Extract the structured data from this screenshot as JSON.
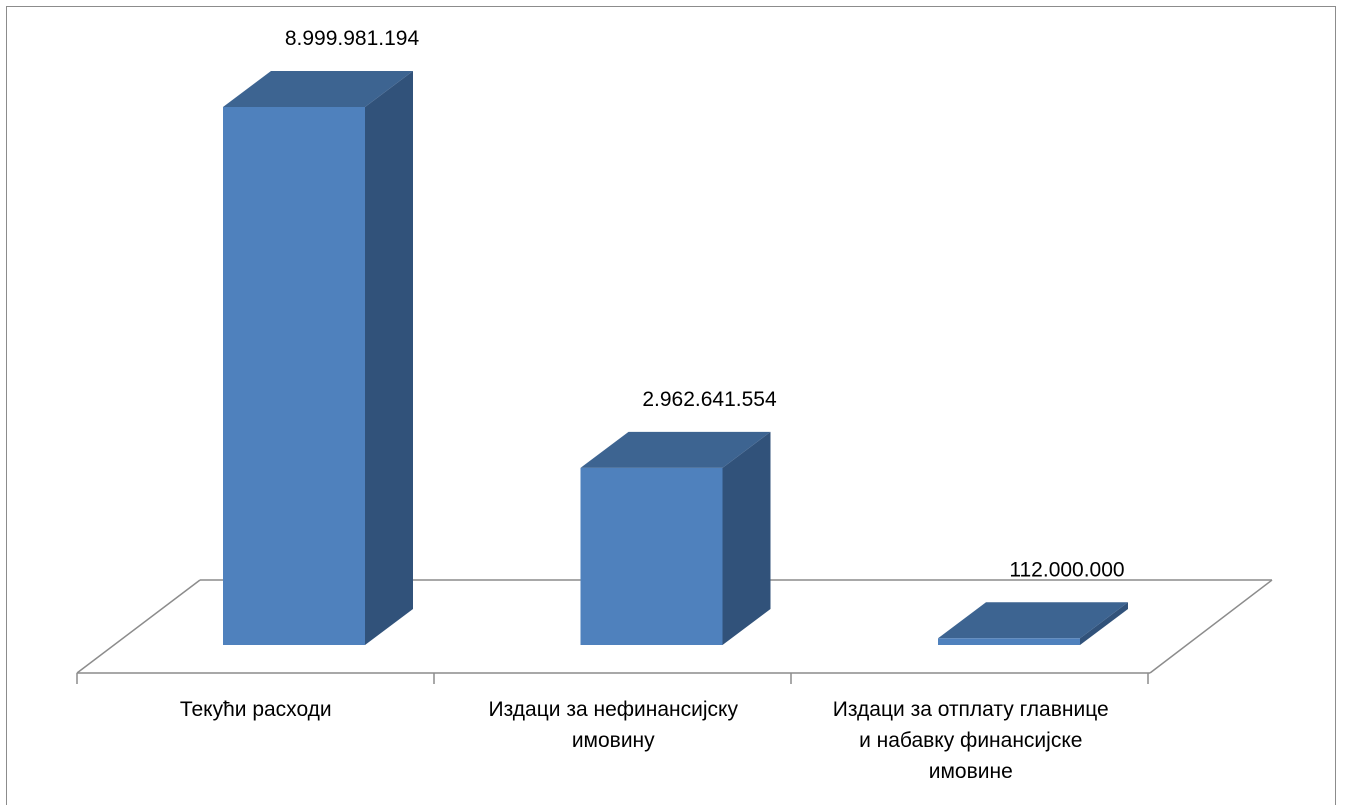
{
  "chart_data": {
    "type": "bar",
    "title": "",
    "xlabel": "",
    "ylabel": "",
    "categories": [
      [
        "Текући расходи"
      ],
      [
        "Издаци за нефинансијску",
        "имовину"
      ],
      [
        "Издаци за отплату главнице",
        "и набавку финансијске",
        "имовине"
      ]
    ],
    "values": [
      8999981194,
      2962641554,
      112000000
    ],
    "value_labels": [
      "8.999.981.194",
      "2.962.641.554",
      "112.000.000"
    ],
    "ylim": [
      0,
      9000000000
    ],
    "grid": false,
    "legend": "none",
    "three_d": true,
    "colors": {
      "front": "#4f81bd",
      "top": "#3d6491",
      "side": "#31527a",
      "floor_line": "#8c8c8c",
      "frame": "#8c8c8c"
    }
  }
}
